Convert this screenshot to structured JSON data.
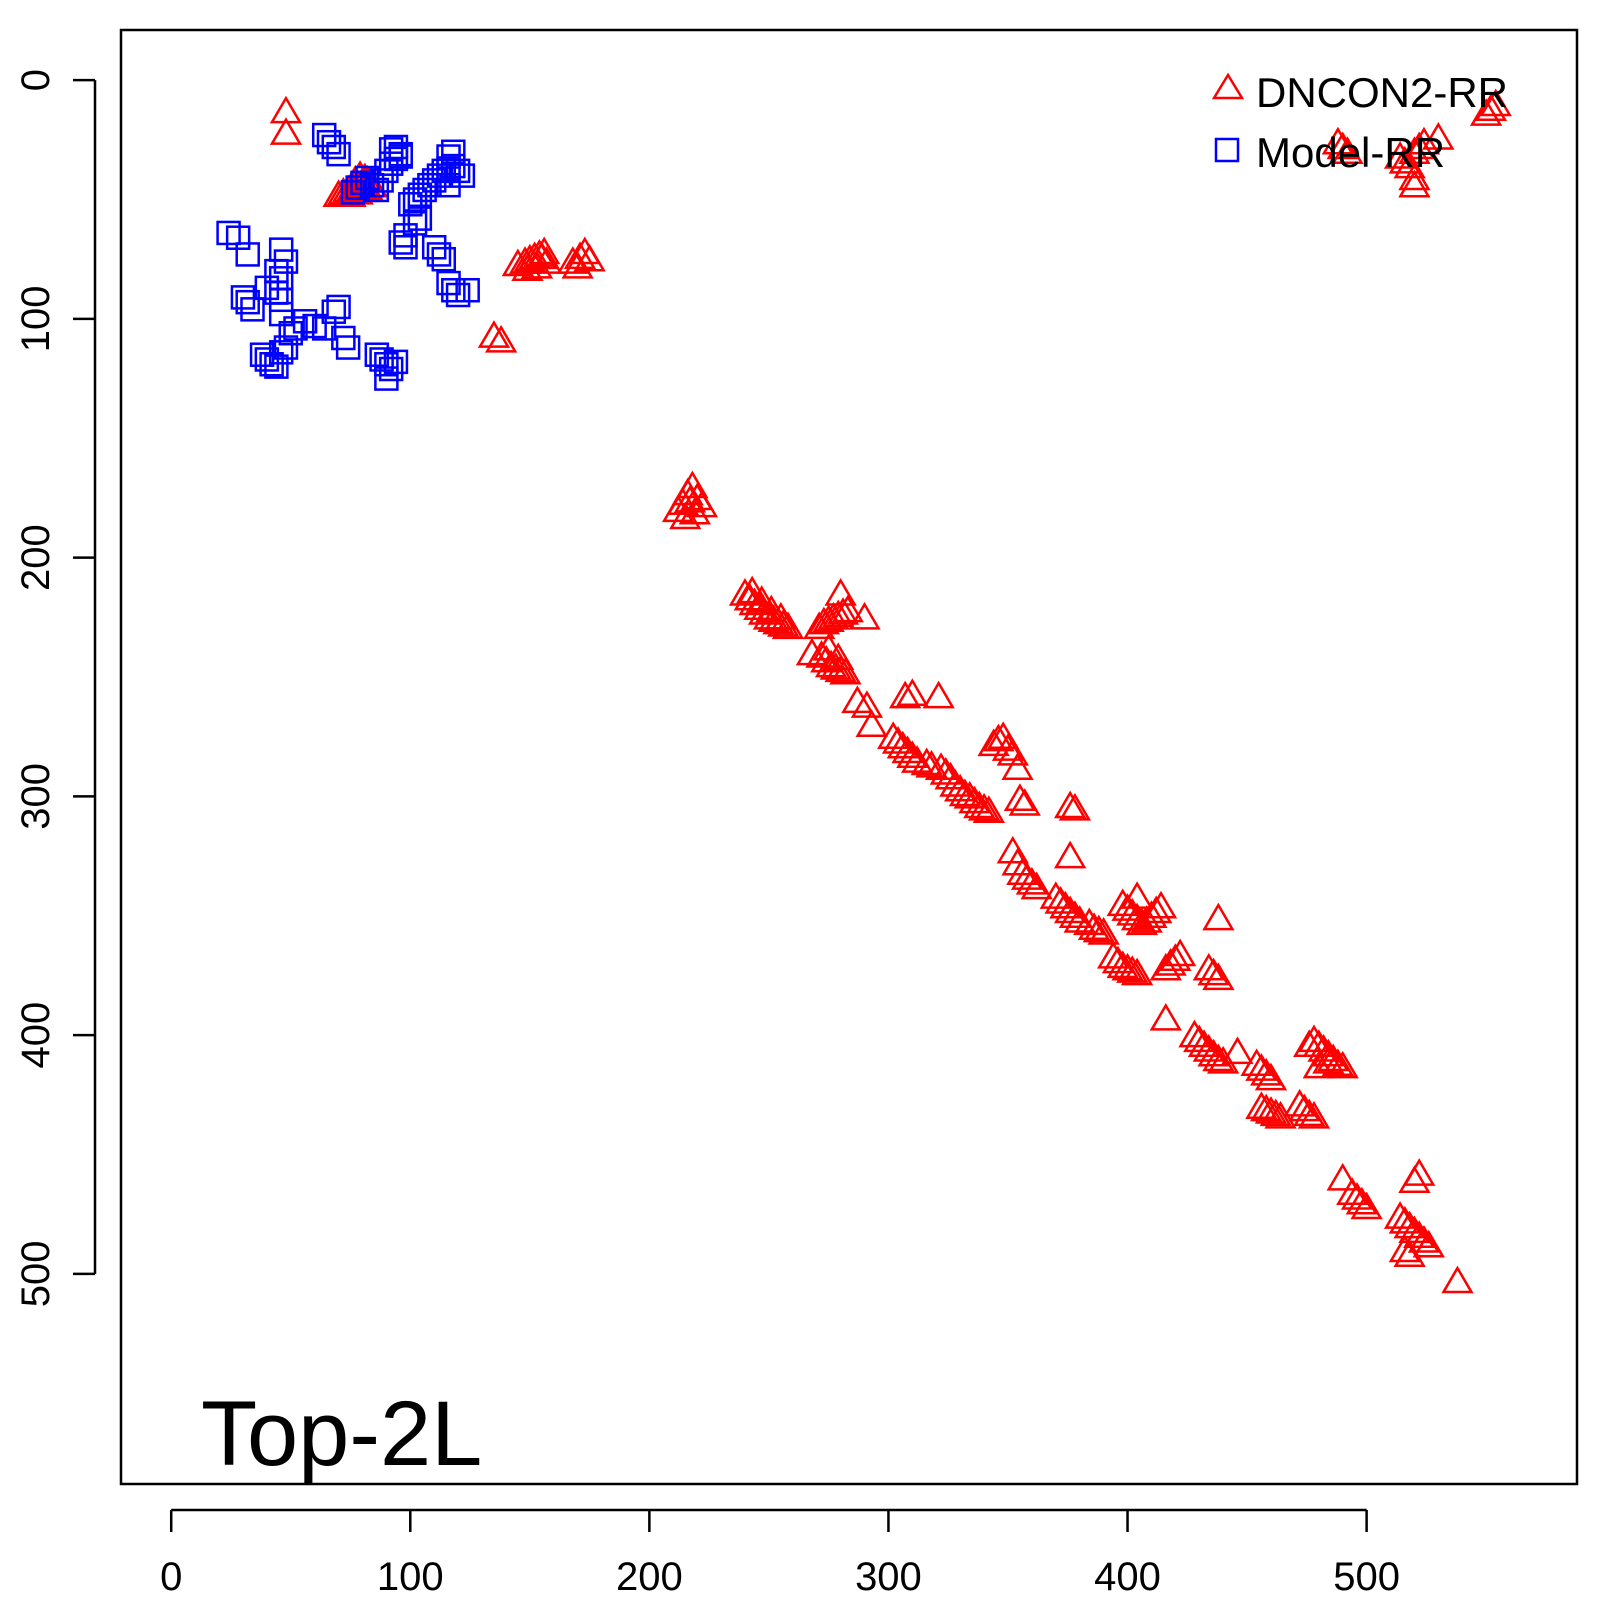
{
  "colors": {
    "dncon2": "#ff0000",
    "model": "#0000ff",
    "axis": "#000000",
    "background": "#ffffff"
  },
  "chart_data": {
    "type": "scatter",
    "title": "",
    "xlabel": "",
    "ylabel": "",
    "panel_label": "Top-2L",
    "xlim": [
      -21,
      588
    ],
    "ylim": [
      588,
      -21
    ],
    "y_axis_inverted": true,
    "x_ticks": [
      0,
      100,
      200,
      300,
      400,
      500
    ],
    "y_ticks": [
      0,
      100,
      200,
      300,
      400,
      500
    ],
    "legend_position": "top-right",
    "grid": false,
    "series": [
      {
        "name": "DNCON2-RR",
        "marker": "triangle",
        "color": "#ff0000",
        "points": [
          [
            48,
            13
          ],
          [
            48,
            22
          ],
          [
            70,
            48
          ],
          [
            72,
            47
          ],
          [
            74,
            46
          ],
          [
            76,
            45
          ],
          [
            78,
            44
          ],
          [
            80,
            43
          ],
          [
            82,
            42
          ],
          [
            75,
            48
          ],
          [
            78,
            47
          ],
          [
            80,
            46
          ],
          [
            82,
            45
          ],
          [
            84,
            44
          ],
          [
            77,
            42
          ],
          [
            79,
            40
          ],
          [
            81,
            41
          ],
          [
            145,
            77
          ],
          [
            148,
            76
          ],
          [
            150,
            75
          ],
          [
            152,
            74
          ],
          [
            154,
            73
          ],
          [
            156,
            72
          ],
          [
            149,
            79
          ],
          [
            153,
            78
          ],
          [
            157,
            76
          ],
          [
            155,
            74
          ],
          [
            168,
            76
          ],
          [
            171,
            74
          ],
          [
            173,
            72
          ],
          [
            170,
            78
          ],
          [
            175,
            75
          ],
          [
            135,
            107
          ],
          [
            138,
            109
          ],
          [
            212,
            180
          ],
          [
            214,
            177
          ],
          [
            216,
            173
          ],
          [
            218,
            170
          ],
          [
            220,
            175
          ],
          [
            222,
            178
          ],
          [
            215,
            183
          ],
          [
            219,
            181
          ],
          [
            217,
            176
          ],
          [
            240,
            215
          ],
          [
            242,
            217
          ],
          [
            244,
            219
          ],
          [
            246,
            221
          ],
          [
            248,
            223
          ],
          [
            250,
            225
          ],
          [
            252,
            226
          ],
          [
            254,
            227
          ],
          [
            256,
            228
          ],
          [
            258,
            229
          ],
          [
            243,
            214
          ],
          [
            247,
            218
          ],
          [
            251,
            222
          ],
          [
            255,
            225
          ],
          [
            268,
            240
          ],
          [
            272,
            241
          ],
          [
            274,
            243
          ],
          [
            276,
            245
          ],
          [
            278,
            246
          ],
          [
            280,
            247
          ],
          [
            282,
            248
          ],
          [
            275,
            238
          ],
          [
            279,
            242
          ],
          [
            271,
            229
          ],
          [
            273,
            227
          ],
          [
            275,
            226
          ],
          [
            277,
            225
          ],
          [
            279,
            224
          ],
          [
            281,
            223
          ],
          [
            283,
            222
          ],
          [
            280,
            215
          ],
          [
            290,
            225
          ],
          [
            287,
            260
          ],
          [
            291,
            262
          ],
          [
            293,
            270
          ],
          [
            307,
            258
          ],
          [
            310,
            257
          ],
          [
            321,
            258
          ],
          [
            302,
            275
          ],
          [
            304,
            277
          ],
          [
            306,
            279
          ],
          [
            308,
            281
          ],
          [
            310,
            283
          ],
          [
            312,
            285
          ],
          [
            316,
            286
          ],
          [
            318,
            287
          ],
          [
            322,
            288
          ],
          [
            324,
            290
          ],
          [
            326,
            292
          ],
          [
            328,
            295
          ],
          [
            330,
            297
          ],
          [
            332,
            299
          ],
          [
            334,
            300
          ],
          [
            336,
            302
          ],
          [
            338,
            304
          ],
          [
            340,
            305
          ],
          [
            342,
            306
          ],
          [
            344,
            278
          ],
          [
            346,
            276
          ],
          [
            348,
            275
          ],
          [
            350,
            280
          ],
          [
            352,
            282
          ],
          [
            354,
            288
          ],
          [
            355,
            301
          ],
          [
            357,
            303
          ],
          [
            352,
            323
          ],
          [
            354,
            328
          ],
          [
            356,
            332
          ],
          [
            358,
            334
          ],
          [
            360,
            336
          ],
          [
            362,
            338
          ],
          [
            370,
            342
          ],
          [
            372,
            344
          ],
          [
            374,
            346
          ],
          [
            376,
            348
          ],
          [
            378,
            350
          ],
          [
            380,
            352
          ],
          [
            384,
            353
          ],
          [
            386,
            355
          ],
          [
            388,
            356
          ],
          [
            390,
            357
          ],
          [
            376,
            304
          ],
          [
            378,
            305
          ],
          [
            376,
            325
          ],
          [
            398,
            345
          ],
          [
            400,
            347
          ],
          [
            402,
            349
          ],
          [
            404,
            351
          ],
          [
            406,
            353
          ],
          [
            408,
            352
          ],
          [
            410,
            350
          ],
          [
            412,
            348
          ],
          [
            414,
            346
          ],
          [
            404,
            342
          ],
          [
            394,
            367
          ],
          [
            396,
            369
          ],
          [
            398,
            371
          ],
          [
            400,
            372
          ],
          [
            402,
            373
          ],
          [
            404,
            374
          ],
          [
            416,
            372
          ],
          [
            418,
            370
          ],
          [
            420,
            368
          ],
          [
            422,
            366
          ],
          [
            434,
            372
          ],
          [
            436,
            374
          ],
          [
            438,
            376
          ],
          [
            438,
            351
          ],
          [
            416,
            393
          ],
          [
            428,
            400
          ],
          [
            430,
            402
          ],
          [
            432,
            404
          ],
          [
            434,
            406
          ],
          [
            436,
            408
          ],
          [
            438,
            410
          ],
          [
            440,
            411
          ],
          [
            446,
            407
          ],
          [
            454,
            412
          ],
          [
            456,
            414
          ],
          [
            458,
            416
          ],
          [
            460,
            418
          ],
          [
            476,
            404
          ],
          [
            478,
            402
          ],
          [
            480,
            404
          ],
          [
            482,
            406
          ],
          [
            484,
            408
          ],
          [
            486,
            410
          ],
          [
            488,
            412
          ],
          [
            490,
            413
          ],
          [
            480,
            413
          ],
          [
            484,
            411
          ],
          [
            456,
            430
          ],
          [
            458,
            431
          ],
          [
            460,
            432
          ],
          [
            462,
            433
          ],
          [
            464,
            434
          ],
          [
            472,
            429
          ],
          [
            474,
            431
          ],
          [
            476,
            433
          ],
          [
            478,
            434
          ],
          [
            490,
            460
          ],
          [
            494,
            466
          ],
          [
            496,
            468
          ],
          [
            498,
            470
          ],
          [
            500,
            472
          ],
          [
            514,
            476
          ],
          [
            516,
            478
          ],
          [
            518,
            480
          ],
          [
            520,
            482
          ],
          [
            522,
            484
          ],
          [
            524,
            486
          ],
          [
            526,
            488
          ],
          [
            516,
            490
          ],
          [
            518,
            492
          ],
          [
            520,
            461
          ],
          [
            522,
            458
          ],
          [
            538,
            503
          ],
          [
            488,
            26
          ],
          [
            490,
            28
          ],
          [
            492,
            30
          ],
          [
            514,
            32
          ],
          [
            516,
            34
          ],
          [
            518,
            36
          ],
          [
            520,
            30
          ],
          [
            522,
            28
          ],
          [
            524,
            26
          ],
          [
            530,
            24
          ],
          [
            520,
            41
          ],
          [
            520,
            44
          ],
          [
            550,
            14
          ],
          [
            552,
            12
          ],
          [
            554,
            10
          ]
        ]
      },
      {
        "name": "Model-RR",
        "marker": "square",
        "color": "#0000ff",
        "points": [
          [
            64,
            23
          ],
          [
            66,
            26
          ],
          [
            68,
            28
          ],
          [
            70,
            31
          ],
          [
            76,
            47
          ],
          [
            78,
            45
          ],
          [
            80,
            43
          ],
          [
            82,
            41
          ],
          [
            84,
            44
          ],
          [
            86,
            46
          ],
          [
            88,
            42
          ],
          [
            90,
            38
          ],
          [
            92,
            35
          ],
          [
            94,
            33
          ],
          [
            96,
            31
          ],
          [
            92,
            29
          ],
          [
            94,
            28
          ],
          [
            96,
            32
          ],
          [
            100,
            52
          ],
          [
            102,
            50
          ],
          [
            104,
            48
          ],
          [
            106,
            46
          ],
          [
            108,
            44
          ],
          [
            110,
            42
          ],
          [
            112,
            40
          ],
          [
            114,
            38
          ],
          [
            116,
            37
          ],
          [
            118,
            36
          ],
          [
            120,
            38
          ],
          [
            122,
            40
          ],
          [
            116,
            32
          ],
          [
            118,
            30
          ],
          [
            116,
            44
          ],
          [
            102,
            60
          ],
          [
            104,
            58
          ],
          [
            98,
            65
          ],
          [
            24,
            64
          ],
          [
            28,
            66
          ],
          [
            32,
            73
          ],
          [
            46,
            71
          ],
          [
            48,
            76
          ],
          [
            44,
            80
          ],
          [
            46,
            83
          ],
          [
            40,
            87
          ],
          [
            44,
            89
          ],
          [
            46,
            92
          ],
          [
            46,
            98
          ],
          [
            30,
            91
          ],
          [
            32,
            93
          ],
          [
            34,
            96
          ],
          [
            56,
            101
          ],
          [
            60,
            103
          ],
          [
            64,
            104
          ],
          [
            68,
            97
          ],
          [
            70,
            95
          ],
          [
            72,
            108
          ],
          [
            74,
            112
          ],
          [
            38,
            115
          ],
          [
            40,
            117
          ],
          [
            42,
            119
          ],
          [
            44,
            120
          ],
          [
            46,
            114
          ],
          [
            48,
            112
          ],
          [
            50,
            106
          ],
          [
            52,
            104
          ],
          [
            86,
            115
          ],
          [
            88,
            117
          ],
          [
            90,
            119
          ],
          [
            92,
            121
          ],
          [
            94,
            118
          ],
          [
            90,
            125
          ],
          [
            96,
            68
          ],
          [
            98,
            70
          ],
          [
            110,
            70
          ],
          [
            112,
            73
          ],
          [
            114,
            75
          ],
          [
            116,
            85
          ],
          [
            118,
            88
          ],
          [
            120,
            90
          ],
          [
            124,
            88
          ]
        ]
      }
    ]
  }
}
